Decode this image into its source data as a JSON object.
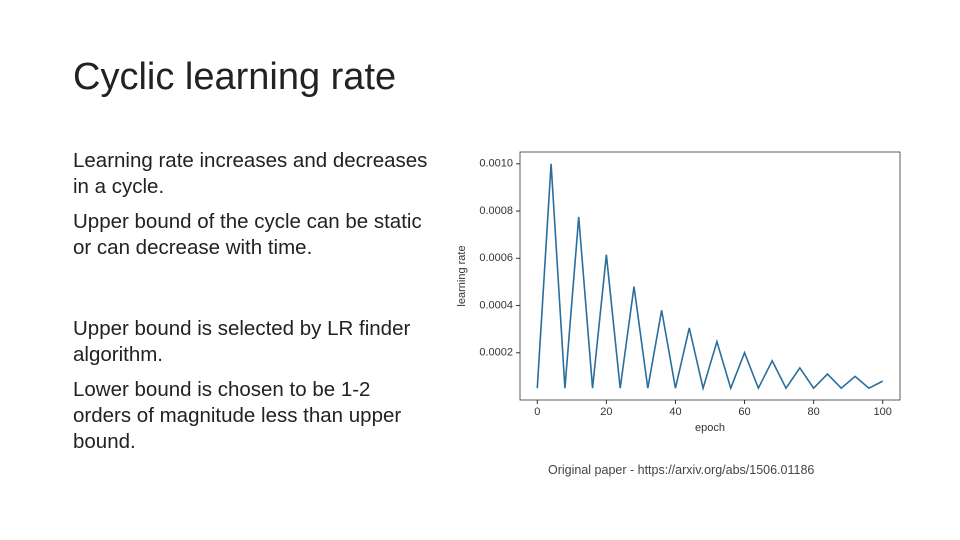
{
  "slide": {
    "title": "Cyclic learning rate",
    "body": [
      "Learning rate increases and decreases in a cycle.",
      "Upper bound of the cycle can be static or can decrease with time.",
      "Upper bound is selected by LR finder algorithm.",
      "Lower bound is chosen to be 1-2 orders of magnitude less than upper bound."
    ],
    "caption": "Original paper - https://arxiv.org/abs/1506.01186"
  },
  "chart_data": {
    "type": "line",
    "xlabel": "epoch",
    "ylabel": "learning rate",
    "color": "#2a6e9e",
    "x": [
      0,
      4,
      8,
      12,
      16,
      20,
      24,
      28,
      32,
      36,
      40,
      44,
      48,
      52,
      56,
      60,
      64,
      68,
      72,
      76,
      80,
      84,
      88,
      92,
      96,
      100
    ],
    "values": [
      5e-05,
      0.001,
      5e-05,
      0.000775,
      5e-05,
      0.000615,
      5e-05,
      0.00048,
      5e-05,
      0.00038,
      5e-05,
      0.000305,
      5e-05,
      0.000247,
      5e-05,
      0.0002,
      5e-05,
      0.000166,
      5e-05,
      0.000136,
      5e-05,
      0.00011,
      5e-05,
      0.0001,
      5e-05,
      8e-05
    ],
    "xlim": [
      -5,
      105
    ],
    "xticks": [
      0,
      20,
      40,
      60,
      80,
      100
    ],
    "ylim": [
      0,
      0.00105
    ],
    "yticks": [
      0.0002,
      0.0004,
      0.0006,
      0.0008,
      {
        "value": 0.001,
        "label": "0.0010"
      }
    ]
  }
}
